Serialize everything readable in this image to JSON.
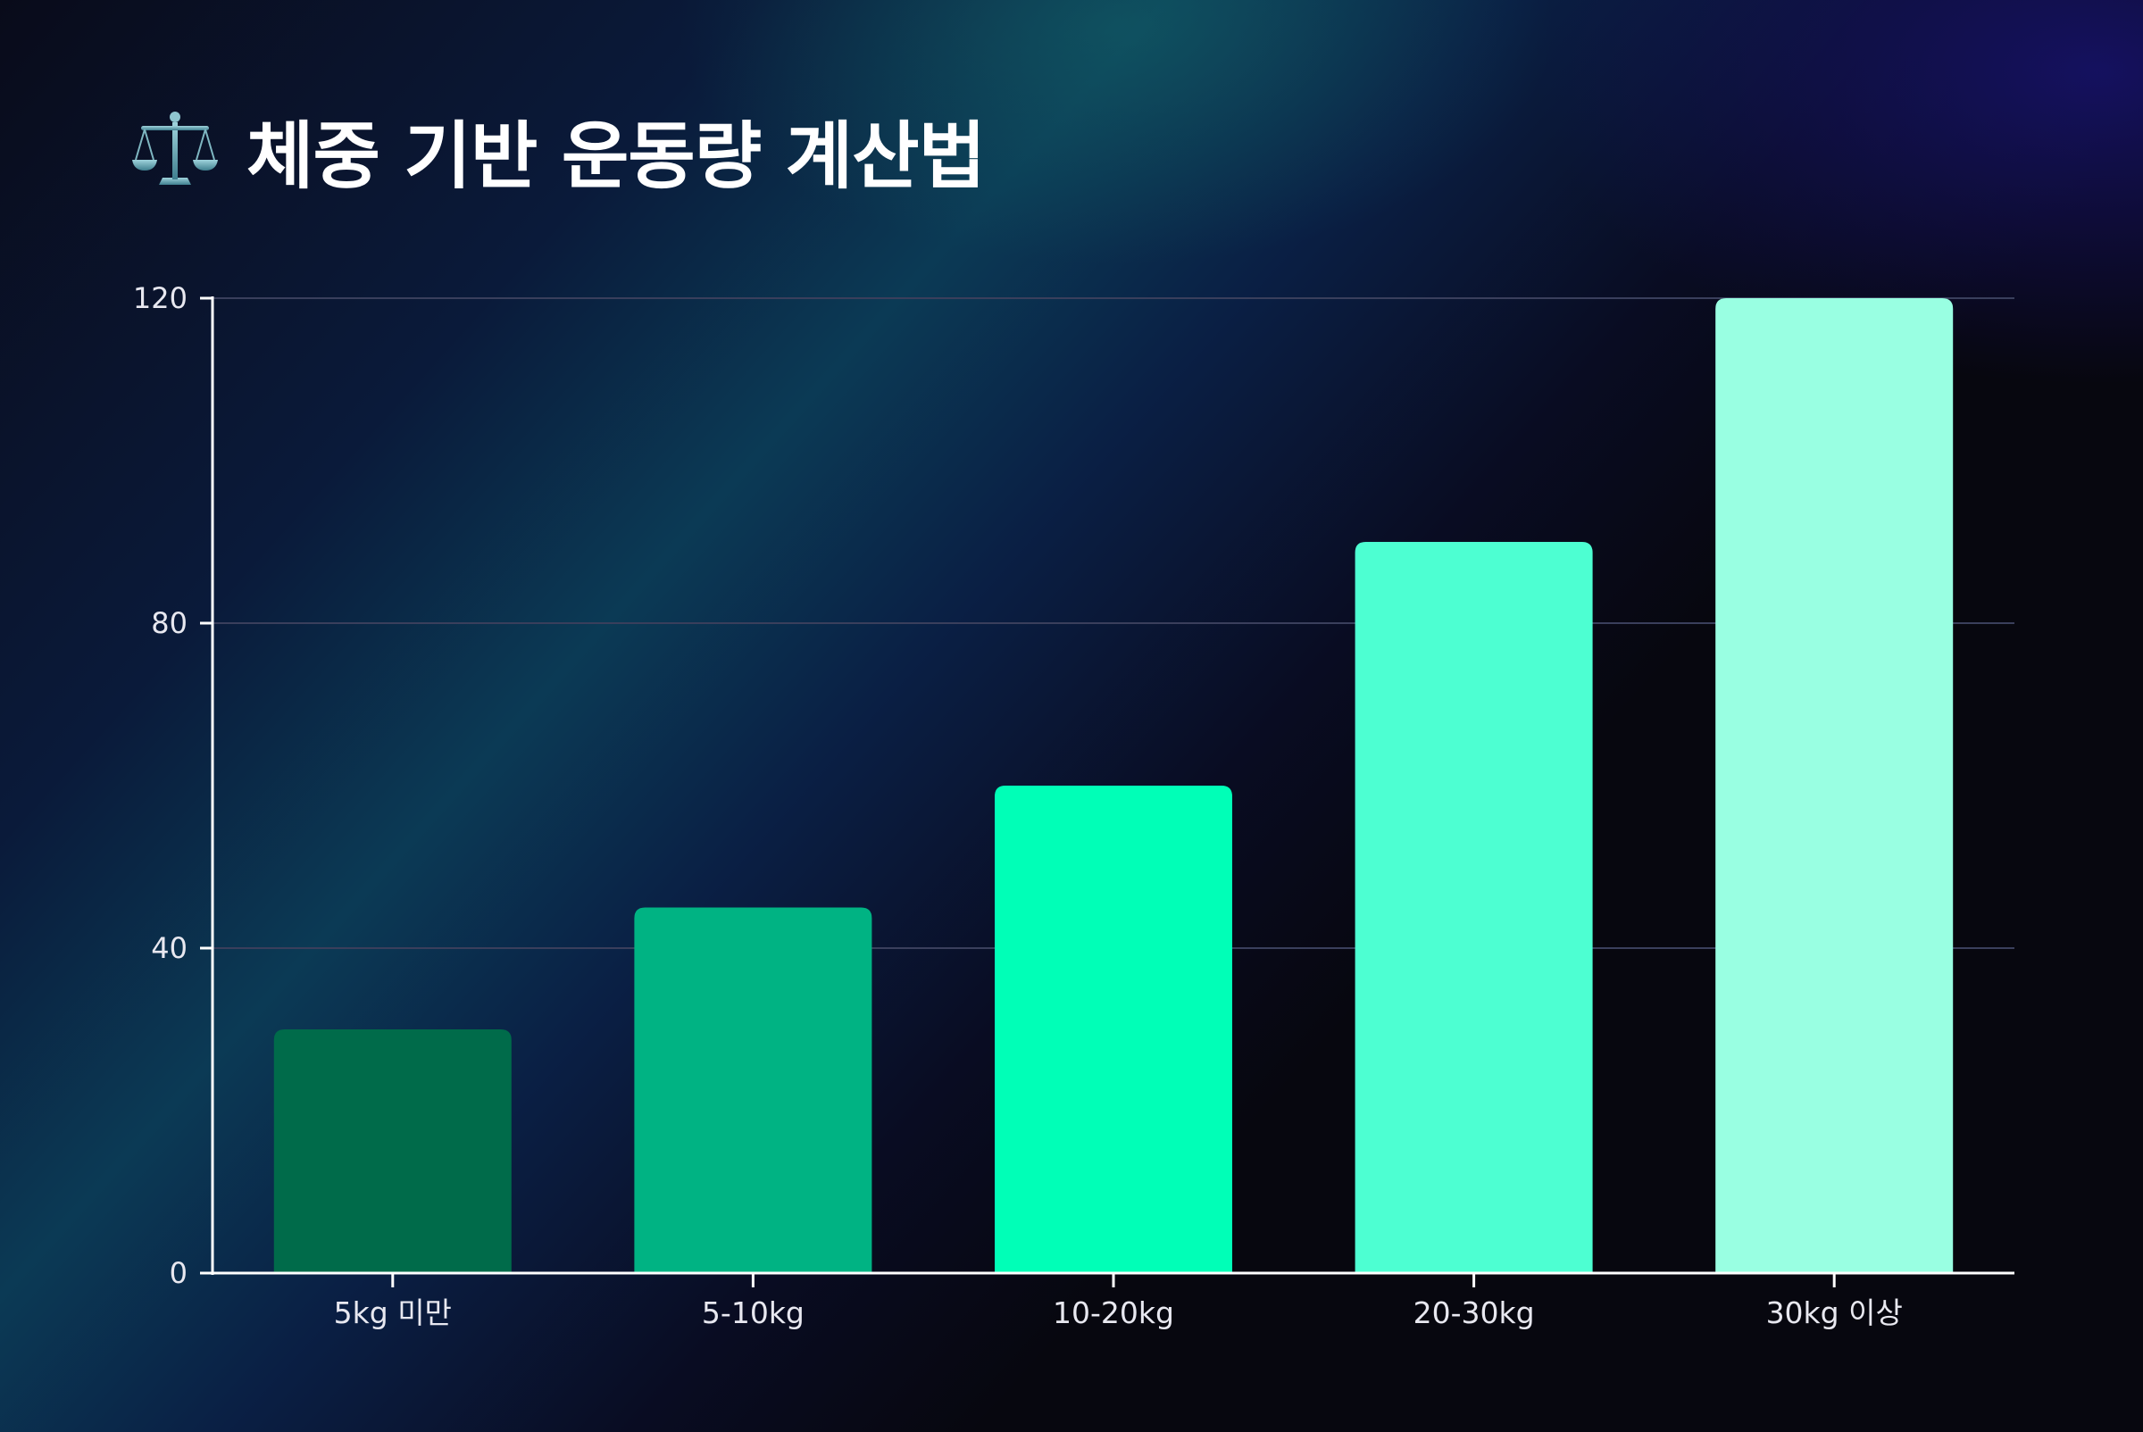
{
  "title": "체중 기반 운동량 계산법",
  "title_icon": "balance-scale-icon",
  "colors": {
    "axis": "#ffffff",
    "grid": "#3a3f5c",
    "text": "#e8e8f0",
    "bars": [
      "#006b4a",
      "#00b383",
      "#00ffb7",
      "#4dffd2",
      "#99ffe2"
    ]
  },
  "chart_data": {
    "type": "bar",
    "title": "체중 기반 운동량 계산법",
    "xlabel": "",
    "ylabel": "",
    "categories": [
      "5kg 미만",
      "5-10kg",
      "10-20kg",
      "20-30kg",
      "30kg 이상"
    ],
    "values": [
      30,
      45,
      60,
      90,
      120
    ],
    "ylim": [
      0,
      120
    ],
    "yticks": [
      0,
      40,
      80,
      120
    ],
    "grid": true,
    "legend": "none"
  }
}
